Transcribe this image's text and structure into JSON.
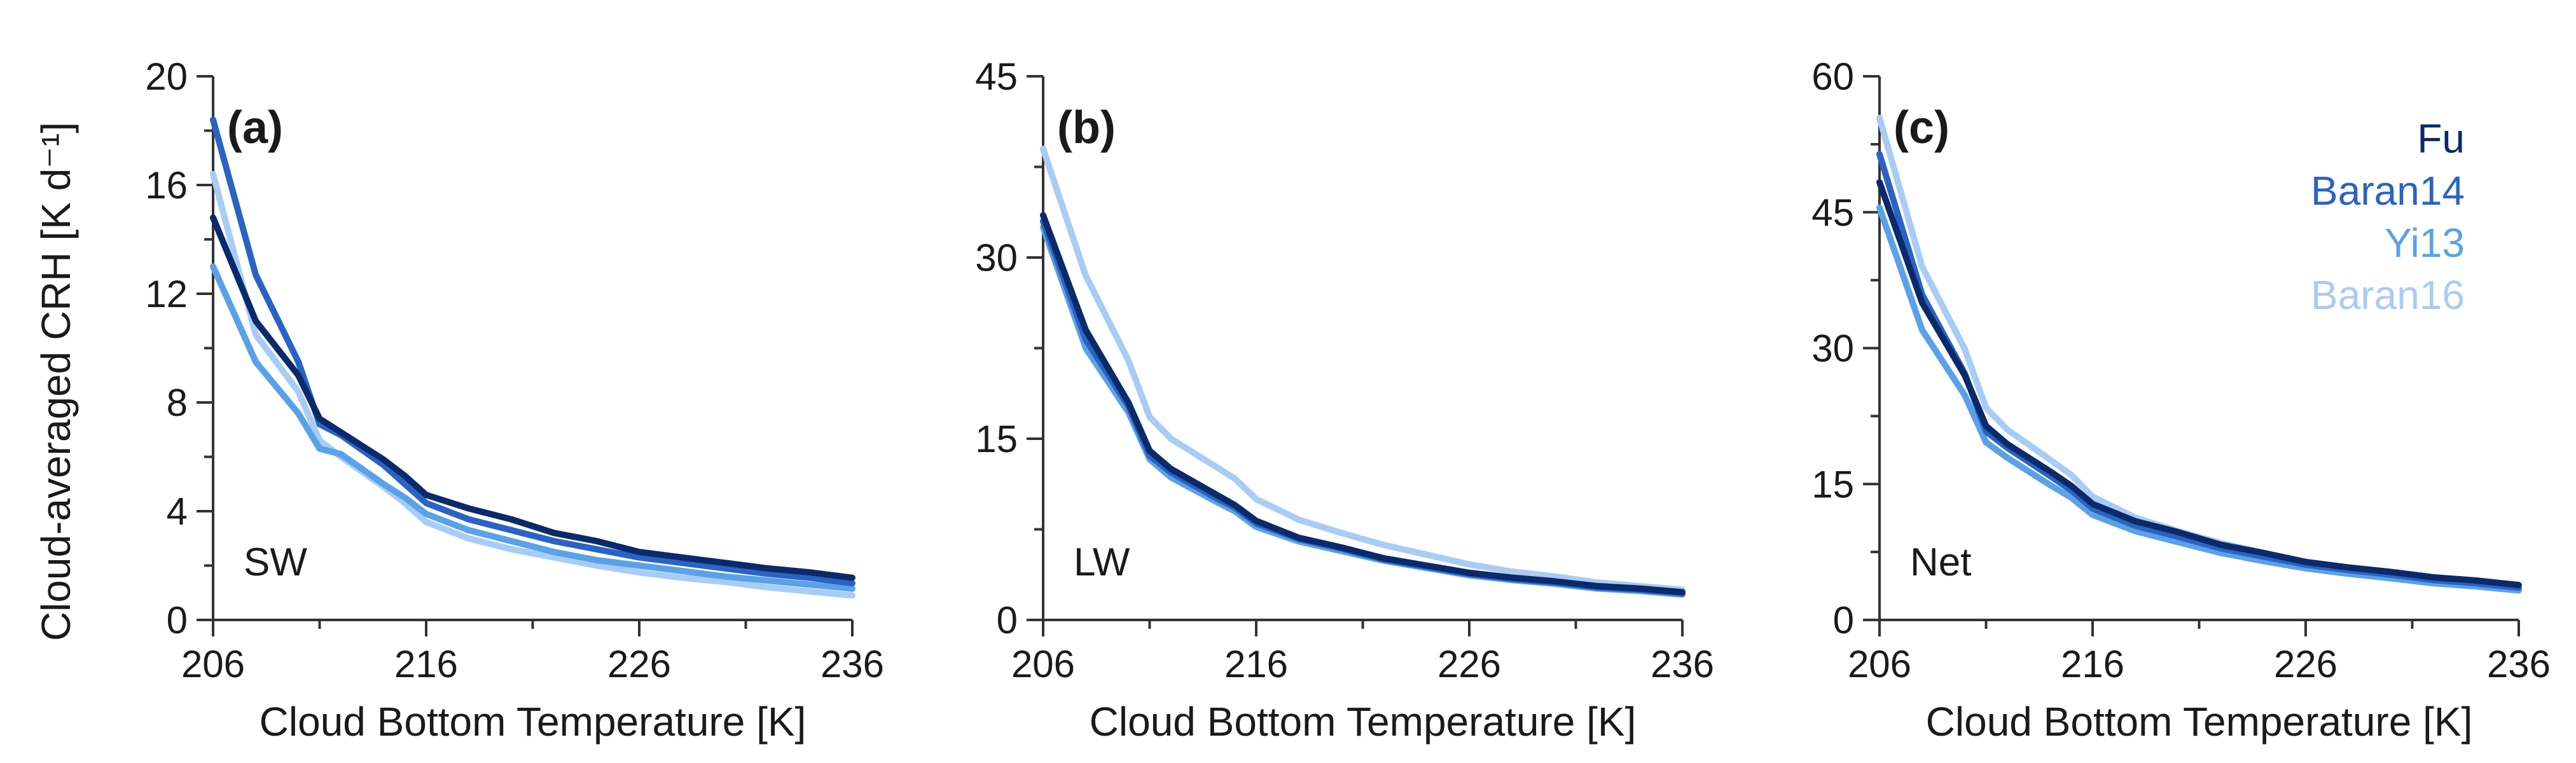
{
  "figure": {
    "ylabel": "Cloud-averaged CRH [K d⁻¹]",
    "legend": [
      {
        "name": "Fu",
        "color": "#0b2a6b"
      },
      {
        "name": "Baran14",
        "color": "#2a63c4"
      },
      {
        "name": "Yi13",
        "color": "#5aa2e8"
      },
      {
        "name": "Baran16",
        "color": "#a8ccf5"
      }
    ]
  },
  "chart_data": [
    {
      "type": "line",
      "panel": "(a)",
      "annotation": "SW",
      "xlabel": "Cloud Bottom Temperature [K]",
      "ylabel": "Cloud-averaged CRH [K d⁻¹]",
      "xlim": [
        206,
        236
      ],
      "ylim": [
        0,
        20
      ],
      "xticks": [
        206,
        216,
        226,
        236
      ],
      "yticks": [
        0,
        4,
        8,
        12,
        16,
        20
      ],
      "x": [
        206,
        208,
        210,
        211,
        212,
        214,
        215,
        216,
        218,
        220,
        222,
        224,
        226,
        228,
        230,
        232,
        234,
        236
      ],
      "series": [
        {
          "name": "Fu",
          "color": "#0b2a6b",
          "values": [
            14.8,
            11.0,
            9.0,
            7.4,
            6.9,
            5.9,
            5.3,
            4.6,
            4.1,
            3.7,
            3.2,
            2.9,
            2.5,
            2.3,
            2.1,
            1.9,
            1.75,
            1.55
          ]
        },
        {
          "name": "Baran14",
          "color": "#2a63c4",
          "values": [
            18.4,
            12.7,
            9.5,
            7.2,
            6.8,
            5.7,
            5.0,
            4.3,
            3.7,
            3.3,
            2.9,
            2.6,
            2.3,
            2.1,
            1.9,
            1.7,
            1.55,
            1.35
          ]
        },
        {
          "name": "Yi13",
          "color": "#5aa2e8",
          "values": [
            13.0,
            9.5,
            7.6,
            6.3,
            6.1,
            5.0,
            4.5,
            3.9,
            3.3,
            2.9,
            2.5,
            2.2,
            2.0,
            1.8,
            1.6,
            1.45,
            1.3,
            1.15
          ]
        },
        {
          "name": "Baran16",
          "color": "#a8ccf5",
          "values": [
            16.4,
            10.5,
            8.4,
            6.6,
            6.0,
            4.9,
            4.3,
            3.6,
            3.0,
            2.6,
            2.3,
            2.0,
            1.75,
            1.55,
            1.4,
            1.2,
            1.05,
            0.9
          ]
        }
      ]
    },
    {
      "type": "line",
      "panel": "(b)",
      "annotation": "LW",
      "xlabel": "Cloud Bottom Temperature [K]",
      "xlim": [
        206,
        236
      ],
      "ylim": [
        0,
        45
      ],
      "xticks": [
        206,
        216,
        226,
        236
      ],
      "yticks": [
        0,
        15,
        30,
        45
      ],
      "x": [
        206,
        208,
        210,
        211,
        212,
        214,
        215,
        216,
        218,
        220,
        222,
        224,
        226,
        228,
        230,
        232,
        234,
        236
      ],
      "series": [
        {
          "name": "Fu",
          "color": "#0b2a6b",
          "values": [
            33.5,
            24.0,
            18.0,
            14.0,
            12.5,
            10.5,
            9.5,
            8.2,
            6.8,
            6.0,
            5.1,
            4.5,
            3.9,
            3.5,
            3.2,
            2.8,
            2.6,
            2.3
          ]
        },
        {
          "name": "Baran14",
          "color": "#2a63c4",
          "values": [
            33.0,
            23.2,
            17.7,
            13.6,
            12.2,
            10.2,
            9.3,
            8.0,
            6.7,
            5.9,
            5.0,
            4.4,
            3.8,
            3.4,
            3.1,
            2.7,
            2.5,
            2.2
          ]
        },
        {
          "name": "Yi13",
          "color": "#5aa2e8",
          "values": [
            32.5,
            22.5,
            17.2,
            13.3,
            11.8,
            9.9,
            9.0,
            7.7,
            6.5,
            5.7,
            4.9,
            4.3,
            3.7,
            3.3,
            3.0,
            2.6,
            2.4,
            2.1
          ]
        },
        {
          "name": "Baran16",
          "color": "#a8ccf5",
          "values": [
            39.0,
            28.5,
            21.5,
            16.8,
            15.0,
            12.8,
            11.7,
            10.0,
            8.3,
            7.2,
            6.2,
            5.4,
            4.6,
            4.0,
            3.6,
            3.1,
            2.8,
            2.5
          ]
        }
      ]
    },
    {
      "type": "line",
      "panel": "(c)",
      "annotation": "Net",
      "xlabel": "Cloud Bottom Temperature [K]",
      "xlim": [
        206,
        236
      ],
      "ylim": [
        0,
        60
      ],
      "xticks": [
        206,
        216,
        226,
        236
      ],
      "yticks": [
        0,
        15,
        30,
        45,
        60
      ],
      "x": [
        206,
        208,
        210,
        211,
        212,
        214,
        215,
        216,
        218,
        220,
        222,
        224,
        226,
        228,
        230,
        232,
        234,
        236
      ],
      "series": [
        {
          "name": "Fu",
          "color": "#0b2a6b",
          "values": [
            48.3,
            35.0,
            27.0,
            21.4,
            19.4,
            16.4,
            14.8,
            12.8,
            10.9,
            9.7,
            8.3,
            7.4,
            6.4,
            5.8,
            5.3,
            4.7,
            4.35,
            3.85
          ]
        },
        {
          "name": "Baran14",
          "color": "#2a63c4",
          "values": [
            51.4,
            35.9,
            27.2,
            20.8,
            19.0,
            15.9,
            14.3,
            12.3,
            10.4,
            9.2,
            7.9,
            7.0,
            6.1,
            5.5,
            5.0,
            4.4,
            4.05,
            3.55
          ]
        },
        {
          "name": "Yi13",
          "color": "#5aa2e8",
          "values": [
            45.5,
            32.0,
            24.8,
            19.6,
            17.9,
            14.9,
            13.5,
            11.6,
            9.8,
            8.6,
            7.4,
            6.5,
            5.7,
            5.1,
            4.6,
            4.05,
            3.7,
            3.25
          ]
        },
        {
          "name": "Baran16",
          "color": "#a8ccf5",
          "values": [
            55.4,
            39.0,
            29.9,
            23.4,
            21.0,
            17.7,
            16.0,
            13.6,
            11.3,
            9.8,
            8.5,
            7.4,
            6.35,
            5.55,
            5.0,
            4.3,
            3.85,
            3.4
          ]
        }
      ]
    }
  ]
}
